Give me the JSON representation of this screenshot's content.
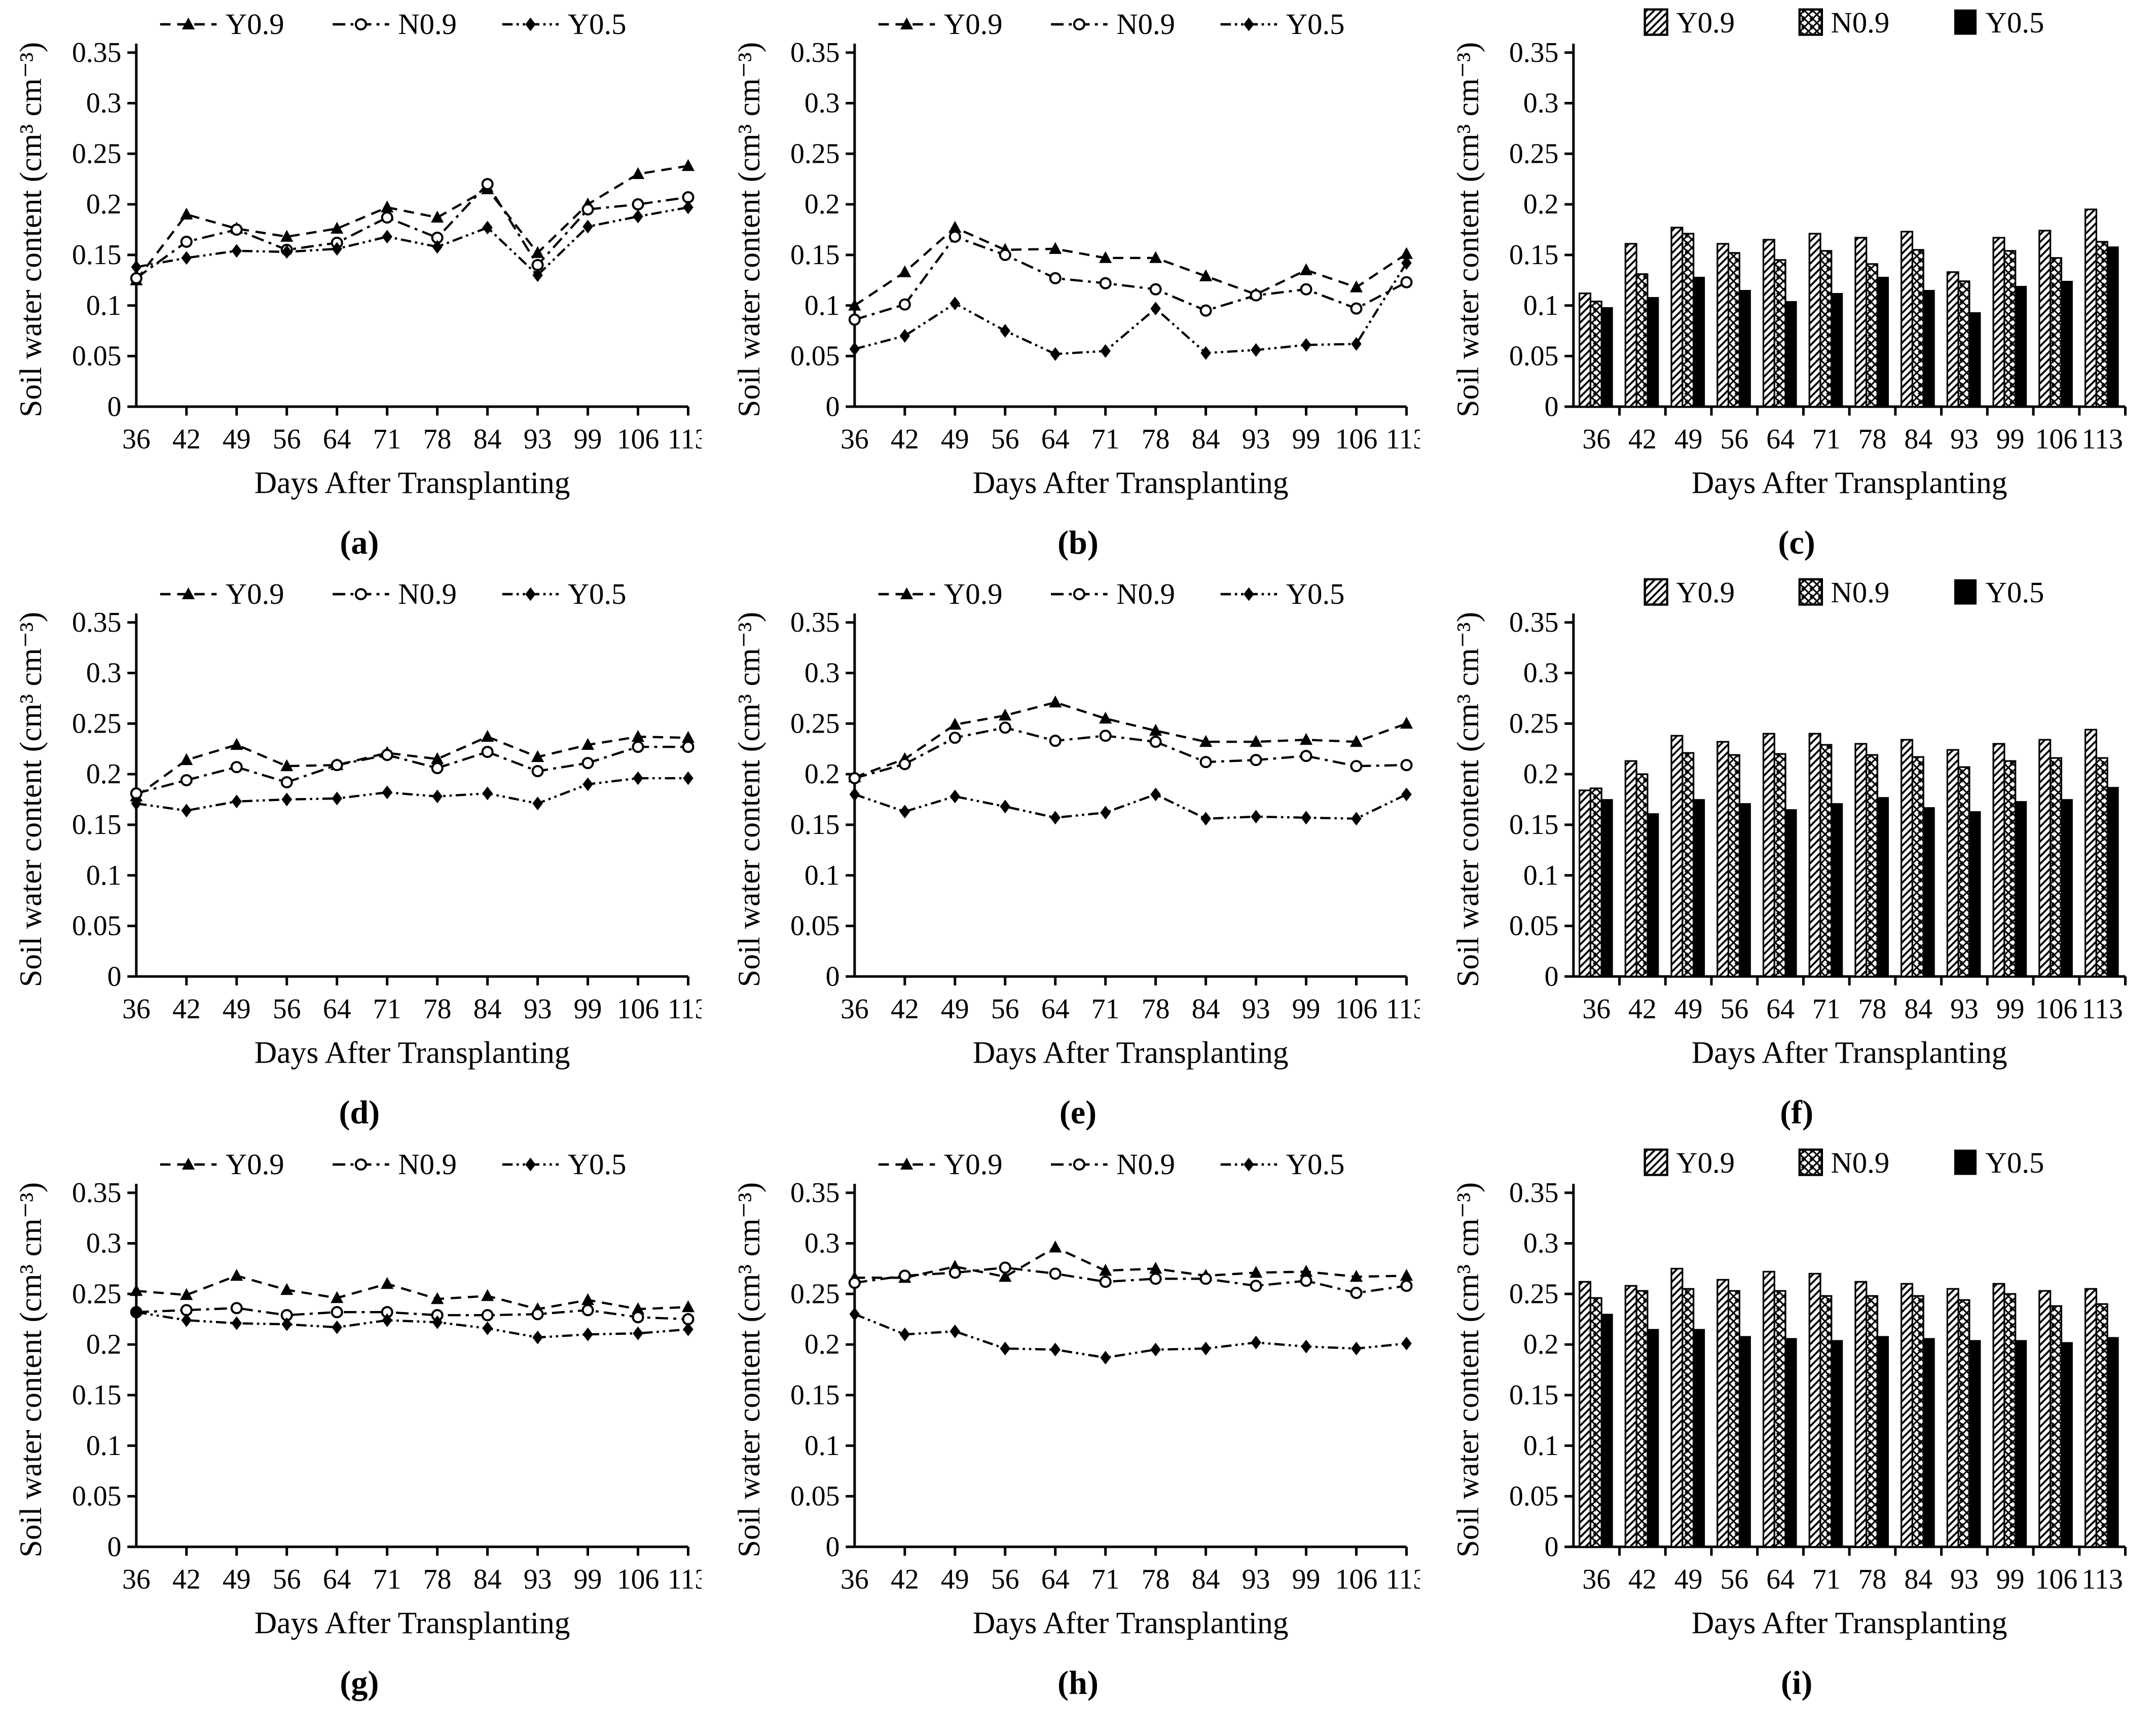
{
  "figure": {
    "xlabel": "Days After Transplanting",
    "ylabel": "Soil water content (cm³ cm⁻³)",
    "categories": [
      36,
      42,
      49,
      56,
      64,
      71,
      78,
      84,
      93,
      99,
      106,
      113
    ],
    "ylim": [
      0,
      0.35
    ],
    "yticks": [
      0,
      0.05,
      0.1,
      0.15,
      0.2,
      0.25,
      0.3,
      0.35
    ],
    "ink_color": "#000000",
    "background_color": "#ffffff",
    "legend_position": "top"
  },
  "chart_data": [
    {
      "caption": "(a)",
      "type": "line",
      "series": [
        {
          "name": "Y0.9",
          "marker": "filled-triangle",
          "dash": "dashed",
          "values": [
            0.125,
            0.19,
            0.176,
            0.168,
            0.176,
            0.197,
            0.187,
            0.215,
            0.152,
            0.2,
            0.23,
            0.238
          ]
        },
        {
          "name": "N0.9",
          "marker": "open-circle",
          "dash": "dashdot",
          "values": [
            0.127,
            0.163,
            0.175,
            0.155,
            0.162,
            0.187,
            0.167,
            0.22,
            0.14,
            0.195,
            0.2,
            0.207
          ]
        },
        {
          "name": "Y0.5",
          "marker": "filled-diamond",
          "dash": "dashdotdot",
          "values": [
            0.138,
            0.147,
            0.154,
            0.153,
            0.156,
            0.168,
            0.158,
            0.177,
            0.13,
            0.178,
            0.188,
            0.197
          ]
        }
      ]
    },
    {
      "caption": "(b)",
      "type": "line",
      "series": [
        {
          "name": "Y0.9",
          "marker": "filled-triangle",
          "dash": "dashed",
          "values": [
            0.1,
            0.133,
            0.177,
            0.155,
            0.156,
            0.147,
            0.147,
            0.129,
            0.111,
            0.135,
            0.118,
            0.151
          ]
        },
        {
          "name": "N0.9",
          "marker": "open-circle",
          "dash": "dashdot",
          "values": [
            0.086,
            0.101,
            0.168,
            0.15,
            0.127,
            0.122,
            0.116,
            0.095,
            0.11,
            0.116,
            0.097,
            0.123
          ]
        },
        {
          "name": "Y0.5",
          "marker": "filled-diamond",
          "dash": "dashdotdot",
          "values": [
            0.057,
            0.07,
            0.102,
            0.075,
            0.052,
            0.055,
            0.097,
            0.053,
            0.056,
            0.061,
            0.062,
            0.142
          ]
        }
      ]
    },
    {
      "caption": "(c)",
      "type": "bar",
      "series": [
        {
          "name": "Y0.9",
          "fill": "hatch-diagonal",
          "values": [
            0.112,
            0.161,
            0.177,
            0.161,
            0.165,
            0.171,
            0.167,
            0.173,
            0.133,
            0.167,
            0.174,
            0.195
          ]
        },
        {
          "name": "N0.9",
          "fill": "hatch-cross",
          "values": [
            0.104,
            0.131,
            0.171,
            0.152,
            0.145,
            0.154,
            0.141,
            0.155,
            0.124,
            0.154,
            0.147,
            0.163
          ]
        },
        {
          "name": "Y0.5",
          "fill": "solid-black",
          "values": [
            0.098,
            0.108,
            0.128,
            0.115,
            0.104,
            0.112,
            0.128,
            0.115,
            0.093,
            0.119,
            0.124,
            0.158
          ]
        }
      ]
    },
    {
      "caption": "(d)",
      "type": "line",
      "series": [
        {
          "name": "Y0.9",
          "marker": "filled-triangle",
          "dash": "dashed",
          "values": [
            0.178,
            0.214,
            0.229,
            0.208,
            0.209,
            0.221,
            0.215,
            0.237,
            0.217,
            0.229,
            0.237,
            0.236
          ]
        },
        {
          "name": "N0.9",
          "marker": "open-circle",
          "dash": "dashdot",
          "values": [
            0.181,
            0.194,
            0.207,
            0.192,
            0.209,
            0.219,
            0.206,
            0.222,
            0.203,
            0.211,
            0.227,
            0.227
          ]
        },
        {
          "name": "Y0.5",
          "marker": "filled-diamond",
          "dash": "dashdotdot",
          "values": [
            0.171,
            0.164,
            0.173,
            0.175,
            0.176,
            0.182,
            0.178,
            0.181,
            0.171,
            0.19,
            0.196,
            0.196
          ]
        }
      ]
    },
    {
      "caption": "(e)",
      "type": "line",
      "series": [
        {
          "name": "Y0.9",
          "marker": "filled-triangle",
          "dash": "dashed",
          "values": [
            0.197,
            0.215,
            0.249,
            0.258,
            0.271,
            0.255,
            0.243,
            0.232,
            0.232,
            0.234,
            0.232,
            0.25
          ]
        },
        {
          "name": "N0.9",
          "marker": "open-circle",
          "dash": "dashdot",
          "values": [
            0.196,
            0.21,
            0.236,
            0.246,
            0.233,
            0.238,
            0.232,
            0.212,
            0.214,
            0.218,
            0.208,
            0.209
          ]
        },
        {
          "name": "Y0.5",
          "marker": "filled-diamond",
          "dash": "dashdotdot",
          "values": [
            0.18,
            0.163,
            0.178,
            0.168,
            0.157,
            0.162,
            0.18,
            0.156,
            0.158,
            0.157,
            0.156,
            0.18
          ]
        }
      ]
    },
    {
      "caption": "(f)",
      "type": "bar",
      "series": [
        {
          "name": "Y0.9",
          "fill": "hatch-diagonal",
          "values": [
            0.184,
            0.213,
            0.238,
            0.232,
            0.24,
            0.24,
            0.23,
            0.234,
            0.224,
            0.23,
            0.234,
            0.244
          ]
        },
        {
          "name": "N0.9",
          "fill": "hatch-cross",
          "values": [
            0.186,
            0.2,
            0.221,
            0.219,
            0.22,
            0.229,
            0.219,
            0.217,
            0.207,
            0.213,
            0.216,
            0.216
          ]
        },
        {
          "name": "Y0.5",
          "fill": "solid-black",
          "values": [
            0.175,
            0.161,
            0.175,
            0.171,
            0.165,
            0.171,
            0.177,
            0.167,
            0.163,
            0.173,
            0.175,
            0.187
          ]
        }
      ]
    },
    {
      "caption": "(g)",
      "type": "line",
      "series": [
        {
          "name": "Y0.9",
          "marker": "filled-triangle",
          "dash": "dashed",
          "values": [
            0.253,
            0.249,
            0.268,
            0.254,
            0.246,
            0.26,
            0.245,
            0.248,
            0.235,
            0.244,
            0.235,
            0.237
          ]
        },
        {
          "name": "N0.9",
          "marker": "open-circle",
          "dash": "dashdot",
          "values": [
            0.232,
            0.234,
            0.236,
            0.229,
            0.232,
            0.232,
            0.229,
            0.229,
            0.23,
            0.234,
            0.227,
            0.225
          ]
        },
        {
          "name": "Y0.5",
          "marker": "filled-diamond",
          "dash": "dashdotdot",
          "values": [
            0.232,
            0.224,
            0.221,
            0.22,
            0.217,
            0.224,
            0.222,
            0.216,
            0.207,
            0.21,
            0.211,
            0.215
          ]
        }
      ]
    },
    {
      "caption": "(h)",
      "type": "line",
      "series": [
        {
          "name": "Y0.9",
          "marker": "filled-triangle",
          "dash": "dashed",
          "values": [
            0.266,
            0.266,
            0.277,
            0.267,
            0.296,
            0.273,
            0.275,
            0.268,
            0.271,
            0.272,
            0.267,
            0.268
          ]
        },
        {
          "name": "N0.9",
          "marker": "open-circle",
          "dash": "dashdot",
          "values": [
            0.261,
            0.268,
            0.271,
            0.276,
            0.27,
            0.262,
            0.265,
            0.265,
            0.258,
            0.263,
            0.251,
            0.258
          ]
        },
        {
          "name": "Y0.5",
          "marker": "filled-diamond",
          "dash": "dashdotdot",
          "values": [
            0.23,
            0.21,
            0.213,
            0.196,
            0.195,
            0.187,
            0.195,
            0.196,
            0.202,
            0.198,
            0.196,
            0.201
          ]
        }
      ]
    },
    {
      "caption": "(i)",
      "type": "bar",
      "series": [
        {
          "name": "Y0.9",
          "fill": "hatch-diagonal",
          "values": [
            0.262,
            0.258,
            0.275,
            0.264,
            0.272,
            0.27,
            0.262,
            0.26,
            0.255,
            0.26,
            0.253,
            0.255
          ]
        },
        {
          "name": "N0.9",
          "fill": "hatch-cross",
          "values": [
            0.246,
            0.253,
            0.255,
            0.253,
            0.253,
            0.248,
            0.248,
            0.248,
            0.244,
            0.25,
            0.238,
            0.24
          ]
        },
        {
          "name": "Y0.5",
          "fill": "solid-black",
          "values": [
            0.23,
            0.215,
            0.215,
            0.208,
            0.206,
            0.204,
            0.208,
            0.206,
            0.204,
            0.204,
            0.202,
            0.207
          ]
        }
      ]
    }
  ]
}
